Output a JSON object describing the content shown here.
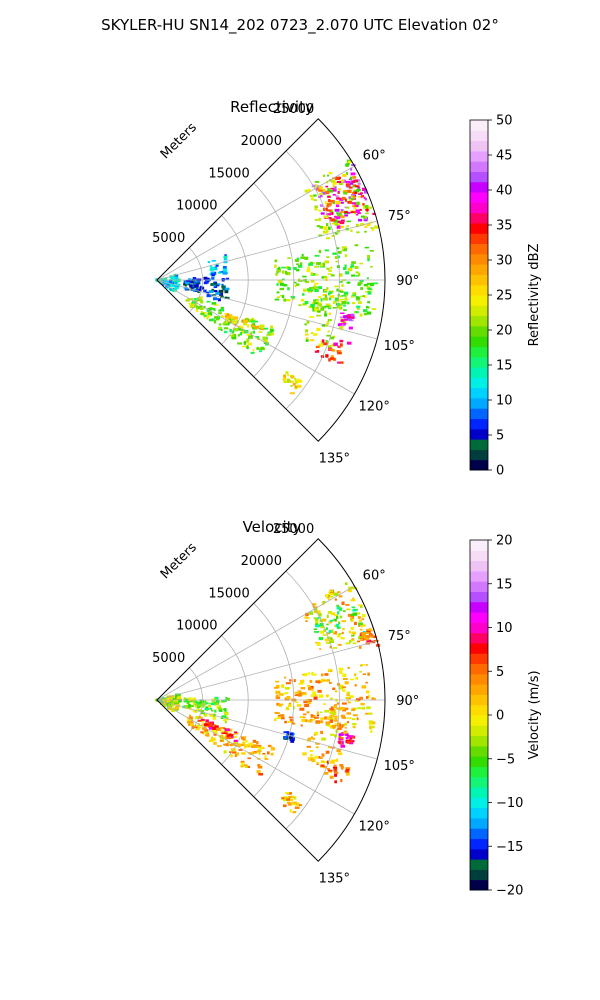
{
  "suptitle": "SKYLER-HU  SN14_202  0723_2.070 UTC Elevation 02°",
  "chart_data": [
    {
      "type": "polar-sector",
      "title": "Reflectivity",
      "range_label": "Meters",
      "range_ticks": [
        5000,
        10000,
        15000,
        20000,
        25000
      ],
      "range_tick_labels": [
        "5000",
        "10000",
        "15000",
        "20000",
        "25000"
      ],
      "range_max": 25000,
      "azimuth_range": [
        45,
        135
      ],
      "azimuth_ticks": [
        60,
        75,
        90,
        105,
        120,
        135
      ],
      "azimuth_tick_labels": [
        "60°",
        "75°",
        "90°",
        "105°",
        "120°",
        "135°"
      ],
      "grid": true,
      "colorbar": {
        "label": "Reflectivity dBZ",
        "min": 0,
        "max": 50,
        "ticks": [
          0,
          5,
          10,
          15,
          20,
          25,
          30,
          35,
          40,
          45,
          50
        ],
        "tick_labels": [
          "0",
          "5",
          "10",
          "15",
          "20",
          "25",
          "30",
          "35",
          "40",
          "45",
          "50"
        ],
        "colors": [
          "#00004a",
          "#003d3d",
          "#006b3a",
          "#0000c8",
          "#0026ff",
          "#0066ff",
          "#00a8ff",
          "#00d2ff",
          "#00f0e6",
          "#00f5b4",
          "#14f578",
          "#1ef03c",
          "#32dc00",
          "#64dc00",
          "#a0e600",
          "#d2ec00",
          "#f5f000",
          "#ffdc00",
          "#ffc200",
          "#ffa600",
          "#ff8a00",
          "#ff6a00",
          "#ff3a00",
          "#ff0000",
          "#ff0066",
          "#ff00cc",
          "#ff00ff",
          "#c800ff",
          "#b450ff",
          "#d278ff",
          "#e6a0ff",
          "#f0c3f5",
          "#f7dcf7",
          "#fbeefb"
        ]
      },
      "echoes": [
        {
          "name": "storm-core-ne",
          "az": [
            59,
            74
          ],
          "r": [
            19500,
            25000
          ],
          "value": 40
        },
        {
          "name": "storm-edge-ne",
          "az": [
            58,
            77
          ],
          "r": [
            18500,
            25000
          ],
          "value": 22
        },
        {
          "name": "storm-ring-ne",
          "az": [
            60,
            72
          ],
          "r": [
            20000,
            24500
          ],
          "value": 33
        },
        {
          "name": "near-clutter",
          "az": [
            75,
            125
          ],
          "r": [
            0,
            2500
          ],
          "value": 12
        },
        {
          "name": "clutter-center",
          "az": [
            88,
            108
          ],
          "r": [
            3000,
            8000
          ],
          "value": 6
        },
        {
          "name": "clutter-upper",
          "az": [
            70,
            85
          ],
          "r": [
            6000,
            8000
          ],
          "value": 10
        },
        {
          "name": "arc-line-sw",
          "az": [
            112,
            128
          ],
          "r": [
            4000,
            14000
          ],
          "value": 20
        },
        {
          "name": "arc-line-core",
          "az": [
            114,
            120
          ],
          "r": [
            8000,
            13000
          ],
          "value": 27
        },
        {
          "name": "radial-line",
          "az": [
            92,
            112
          ],
          "r": [
            17000,
            21000
          ],
          "value": 22
        },
        {
          "name": "cell-se",
          "az": [
            108,
            115
          ],
          "r": [
            19000,
            22500
          ],
          "value": 33
        },
        {
          "name": "cell-small-e",
          "az": [
            100,
            104
          ],
          "r": [
            20500,
            22000
          ],
          "value": 40
        },
        {
          "name": "cell-far-s",
          "az": [
            125,
            130
          ],
          "r": [
            17500,
            19500
          ],
          "value": 25
        },
        {
          "name": "scatter-e",
          "az": [
            80,
            100
          ],
          "r": [
            13000,
            24000
          ],
          "value": 20
        }
      ]
    },
    {
      "type": "polar-sector",
      "title": "Velocity",
      "range_label": "Meters",
      "range_ticks": [
        5000,
        10000,
        15000,
        20000,
        25000
      ],
      "range_tick_labels": [
        "5000",
        "10000",
        "15000",
        "20000",
        "25000"
      ],
      "range_max": 25000,
      "azimuth_range": [
        45,
        135
      ],
      "azimuth_ticks": [
        60,
        75,
        90,
        105,
        120,
        135
      ],
      "azimuth_tick_labels": [
        "60°",
        "75°",
        "90°",
        "105°",
        "120°",
        "135°"
      ],
      "grid": true,
      "colorbar": {
        "label": "Velocity (m/s)",
        "min": -20,
        "max": 20,
        "ticks": [
          -20,
          -15,
          -10,
          -5,
          0,
          5,
          10,
          15,
          20
        ],
        "tick_labels": [
          "−20",
          "−15",
          "−10",
          "−5",
          "0",
          "5",
          "10",
          "15",
          "20"
        ],
        "colors": [
          "#00004a",
          "#003d3d",
          "#006b3a",
          "#0000c8",
          "#0026ff",
          "#0066ff",
          "#00a8ff",
          "#00d2ff",
          "#00f0e6",
          "#00f5b4",
          "#14f578",
          "#1ef03c",
          "#32dc00",
          "#64dc00",
          "#a0e600",
          "#d2ec00",
          "#f5f000",
          "#ffdc00",
          "#ffc200",
          "#ffa600",
          "#ff8a00",
          "#ff6a00",
          "#ff3a00",
          "#ff0000",
          "#ff0066",
          "#ff00cc",
          "#ff00ff",
          "#c800ff",
          "#b450ff",
          "#d278ff",
          "#e6a0ff",
          "#f0c3f5",
          "#f7dcf7",
          "#fbeefb"
        ]
      },
      "echoes": [
        {
          "name": "storm-main-ne",
          "az": [
            58,
            74
          ],
          "r": [
            18500,
            25000
          ],
          "value": 1
        },
        {
          "name": "storm-green-band",
          "az": [
            62,
            72
          ],
          "r": [
            19000,
            24000
          ],
          "value": -5
        },
        {
          "name": "storm-edge-e",
          "az": [
            72,
            77
          ],
          "r": [
            23000,
            25000
          ],
          "value": 6
        },
        {
          "name": "near-clutter",
          "az": [
            75,
            125
          ],
          "r": [
            0,
            2500
          ],
          "value": -2
        },
        {
          "name": "clutter-center",
          "az": [
            88,
            108
          ],
          "r": [
            3000,
            8000
          ],
          "value": -4
        },
        {
          "name": "arc-line-sw",
          "az": [
            112,
            128
          ],
          "r": [
            4000,
            14000
          ],
          "value": 2
        },
        {
          "name": "arc-line-warm",
          "az": [
            112,
            118
          ],
          "r": [
            5000,
            10000
          ],
          "value": 7
        },
        {
          "name": "radial-line",
          "az": [
            92,
            112
          ],
          "r": [
            17000,
            21000
          ],
          "value": 2
        },
        {
          "name": "cell-se",
          "az": [
            108,
            115
          ],
          "r": [
            19000,
            22500
          ],
          "value": 4
        },
        {
          "name": "cell-small-e",
          "az": [
            100,
            104
          ],
          "r": [
            20500,
            22000
          ],
          "value": 9
        },
        {
          "name": "cell-blue",
          "az": [
            104,
            107
          ],
          "r": [
            14500,
            15500
          ],
          "value": -16
        },
        {
          "name": "cell-far-s",
          "az": [
            125,
            130
          ],
          "r": [
            17500,
            19500
          ],
          "value": 2
        },
        {
          "name": "scatter-e",
          "az": [
            80,
            100
          ],
          "r": [
            13000,
            24000
          ],
          "value": 2
        }
      ]
    }
  ]
}
